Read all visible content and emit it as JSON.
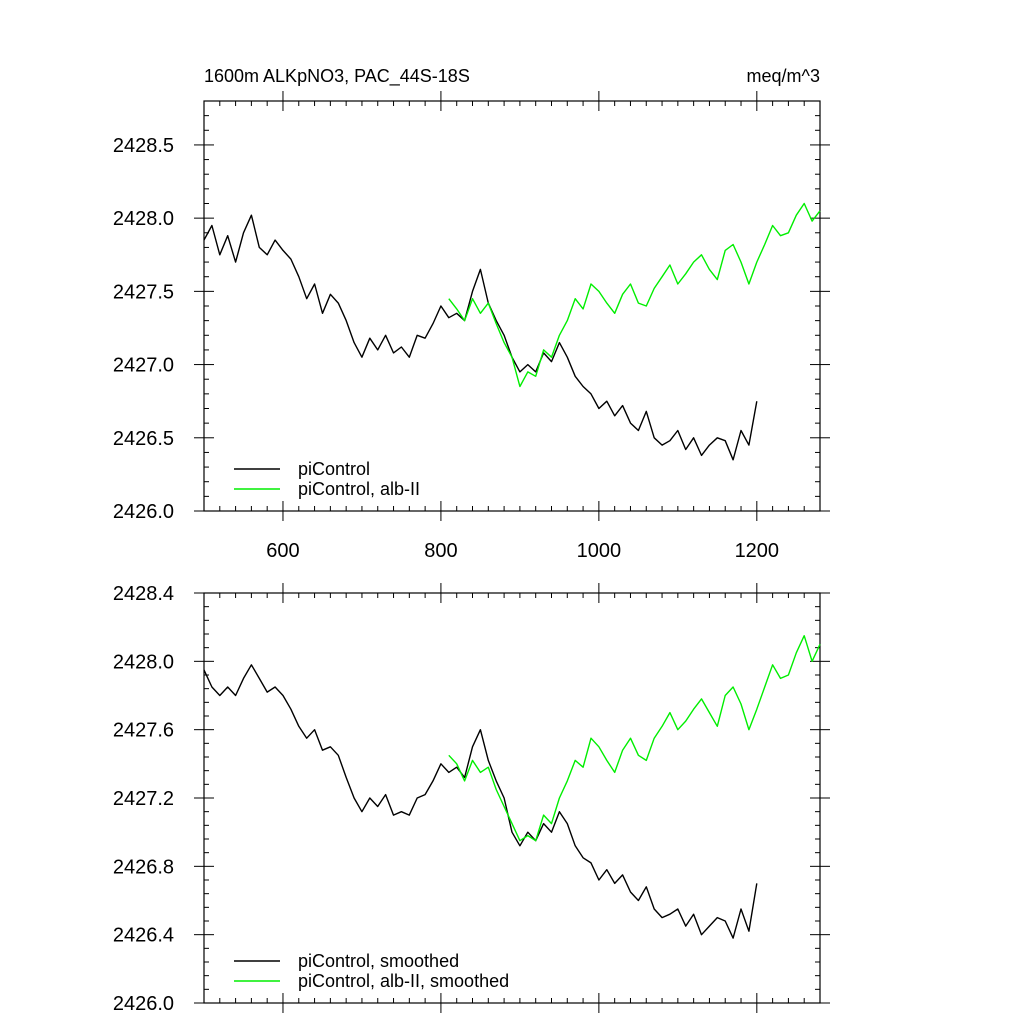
{
  "header": {
    "title": "1600m ALKpNO3, PAC_44S-18S",
    "units": "meq/m^3"
  },
  "chart_data": [
    {
      "type": "line",
      "panel": "top",
      "xlim": [
        500,
        1280
      ],
      "ylim": [
        2426.0,
        2428.8
      ],
      "x_ticks": [
        600,
        800,
        1000,
        1200
      ],
      "x_tick_labels": [
        "600",
        "800",
        "1000",
        "1200"
      ],
      "y_ticks": [
        2426.0,
        2426.5,
        2427.0,
        2427.5,
        2428.0,
        2428.5
      ],
      "y_tick_labels": [
        "2426.0",
        "2426.5",
        "2427.0",
        "2427.5",
        "2428.0",
        "2428.5"
      ],
      "legend_position": "bottom-left",
      "series": [
        {
          "name": "piControl",
          "color": "#000000",
          "x_start": 500,
          "x_step": 10,
          "values": [
            2427.85,
            2427.95,
            2427.75,
            2427.88,
            2427.7,
            2427.9,
            2428.02,
            2427.8,
            2427.75,
            2427.85,
            2427.78,
            2427.72,
            2427.6,
            2427.45,
            2427.55,
            2427.35,
            2427.48,
            2427.42,
            2427.3,
            2427.15,
            2427.05,
            2427.18,
            2427.1,
            2427.2,
            2427.08,
            2427.12,
            2427.05,
            2427.2,
            2427.18,
            2427.28,
            2427.4,
            2427.32,
            2427.35,
            2427.3,
            2427.5,
            2427.65,
            2427.42,
            2427.3,
            2427.2,
            2427.05,
            2426.95,
            2427.0,
            2426.95,
            2427.08,
            2427.02,
            2427.15,
            2427.05,
            2426.92,
            2426.85,
            2426.8,
            2426.7,
            2426.75,
            2426.65,
            2426.72,
            2426.6,
            2426.55,
            2426.68,
            2426.5,
            2426.45,
            2426.48,
            2426.55,
            2426.42,
            2426.5,
            2426.38,
            2426.45,
            2426.5,
            2426.48,
            2426.35,
            2426.55,
            2426.45,
            2426.75
          ]
        },
        {
          "name": "piControl, alb-II",
          "color": "#00ee00",
          "x_start": 810,
          "x_step": 10,
          "values": [
            2427.45,
            2427.38,
            2427.3,
            2427.45,
            2427.35,
            2427.42,
            2427.28,
            2427.15,
            2427.05,
            2426.85,
            2426.95,
            2426.92,
            2427.1,
            2427.05,
            2427.2,
            2427.3,
            2427.45,
            2427.38,
            2427.55,
            2427.5,
            2427.42,
            2427.35,
            2427.48,
            2427.55,
            2427.42,
            2427.4,
            2427.52,
            2427.6,
            2427.68,
            2427.55,
            2427.62,
            2427.7,
            2427.75,
            2427.65,
            2427.58,
            2427.78,
            2427.82,
            2427.7,
            2427.55,
            2427.7,
            2427.82,
            2427.95,
            2427.88,
            2427.9,
            2428.02,
            2428.1,
            2427.98,
            2428.05
          ]
        }
      ]
    },
    {
      "type": "line",
      "panel": "bottom",
      "xlim": [
        500,
        1280
      ],
      "ylim": [
        2426.0,
        2428.4
      ],
      "x_ticks": [
        600,
        800,
        1000,
        1200
      ],
      "y_ticks": [
        2426.0,
        2426.4,
        2426.8,
        2427.2,
        2427.6,
        2428.0,
        2428.4
      ],
      "y_tick_labels": [
        "2426.0",
        "2426.4",
        "2426.8",
        "2427.2",
        "2427.6",
        "2428.0",
        "2428.4"
      ],
      "legend_position": "bottom-left",
      "series": [
        {
          "name": "piControl, smoothed",
          "color": "#000000",
          "x_start": 500,
          "x_step": 10,
          "values": [
            2427.95,
            2427.85,
            2427.8,
            2427.85,
            2427.8,
            2427.9,
            2427.98,
            2427.9,
            2427.82,
            2427.85,
            2427.8,
            2427.72,
            2427.62,
            2427.55,
            2427.6,
            2427.48,
            2427.5,
            2427.45,
            2427.32,
            2427.2,
            2427.12,
            2427.2,
            2427.15,
            2427.22,
            2427.1,
            2427.12,
            2427.1,
            2427.2,
            2427.22,
            2427.3,
            2427.4,
            2427.35,
            2427.38,
            2427.32,
            2427.5,
            2427.6,
            2427.42,
            2427.3,
            2427.2,
            2427.0,
            2426.92,
            2427.0,
            2426.95,
            2427.05,
            2427.0,
            2427.12,
            2427.05,
            2426.92,
            2426.85,
            2426.82,
            2426.72,
            2426.78,
            2426.7,
            2426.75,
            2426.65,
            2426.6,
            2426.68,
            2426.55,
            2426.5,
            2426.52,
            2426.55,
            2426.45,
            2426.52,
            2426.4,
            2426.45,
            2426.5,
            2426.48,
            2426.38,
            2426.55,
            2426.42,
            2426.7
          ]
        },
        {
          "name": "piControl, alb-II, smoothed",
          "color": "#00ee00",
          "x_start": 810,
          "x_step": 10,
          "values": [
            2427.45,
            2427.4,
            2427.3,
            2427.42,
            2427.35,
            2427.38,
            2427.25,
            2427.15,
            2427.05,
            2426.95,
            2426.98,
            2426.95,
            2427.1,
            2427.05,
            2427.2,
            2427.3,
            2427.42,
            2427.38,
            2427.55,
            2427.5,
            2427.42,
            2427.35,
            2427.48,
            2427.55,
            2427.45,
            2427.42,
            2427.55,
            2427.62,
            2427.7,
            2427.6,
            2427.65,
            2427.72,
            2427.78,
            2427.7,
            2427.62,
            2427.8,
            2427.85,
            2427.75,
            2427.6,
            2427.72,
            2427.85,
            2427.98,
            2427.9,
            2427.92,
            2428.05,
            2428.15,
            2428.0,
            2428.1
          ]
        }
      ]
    }
  ]
}
